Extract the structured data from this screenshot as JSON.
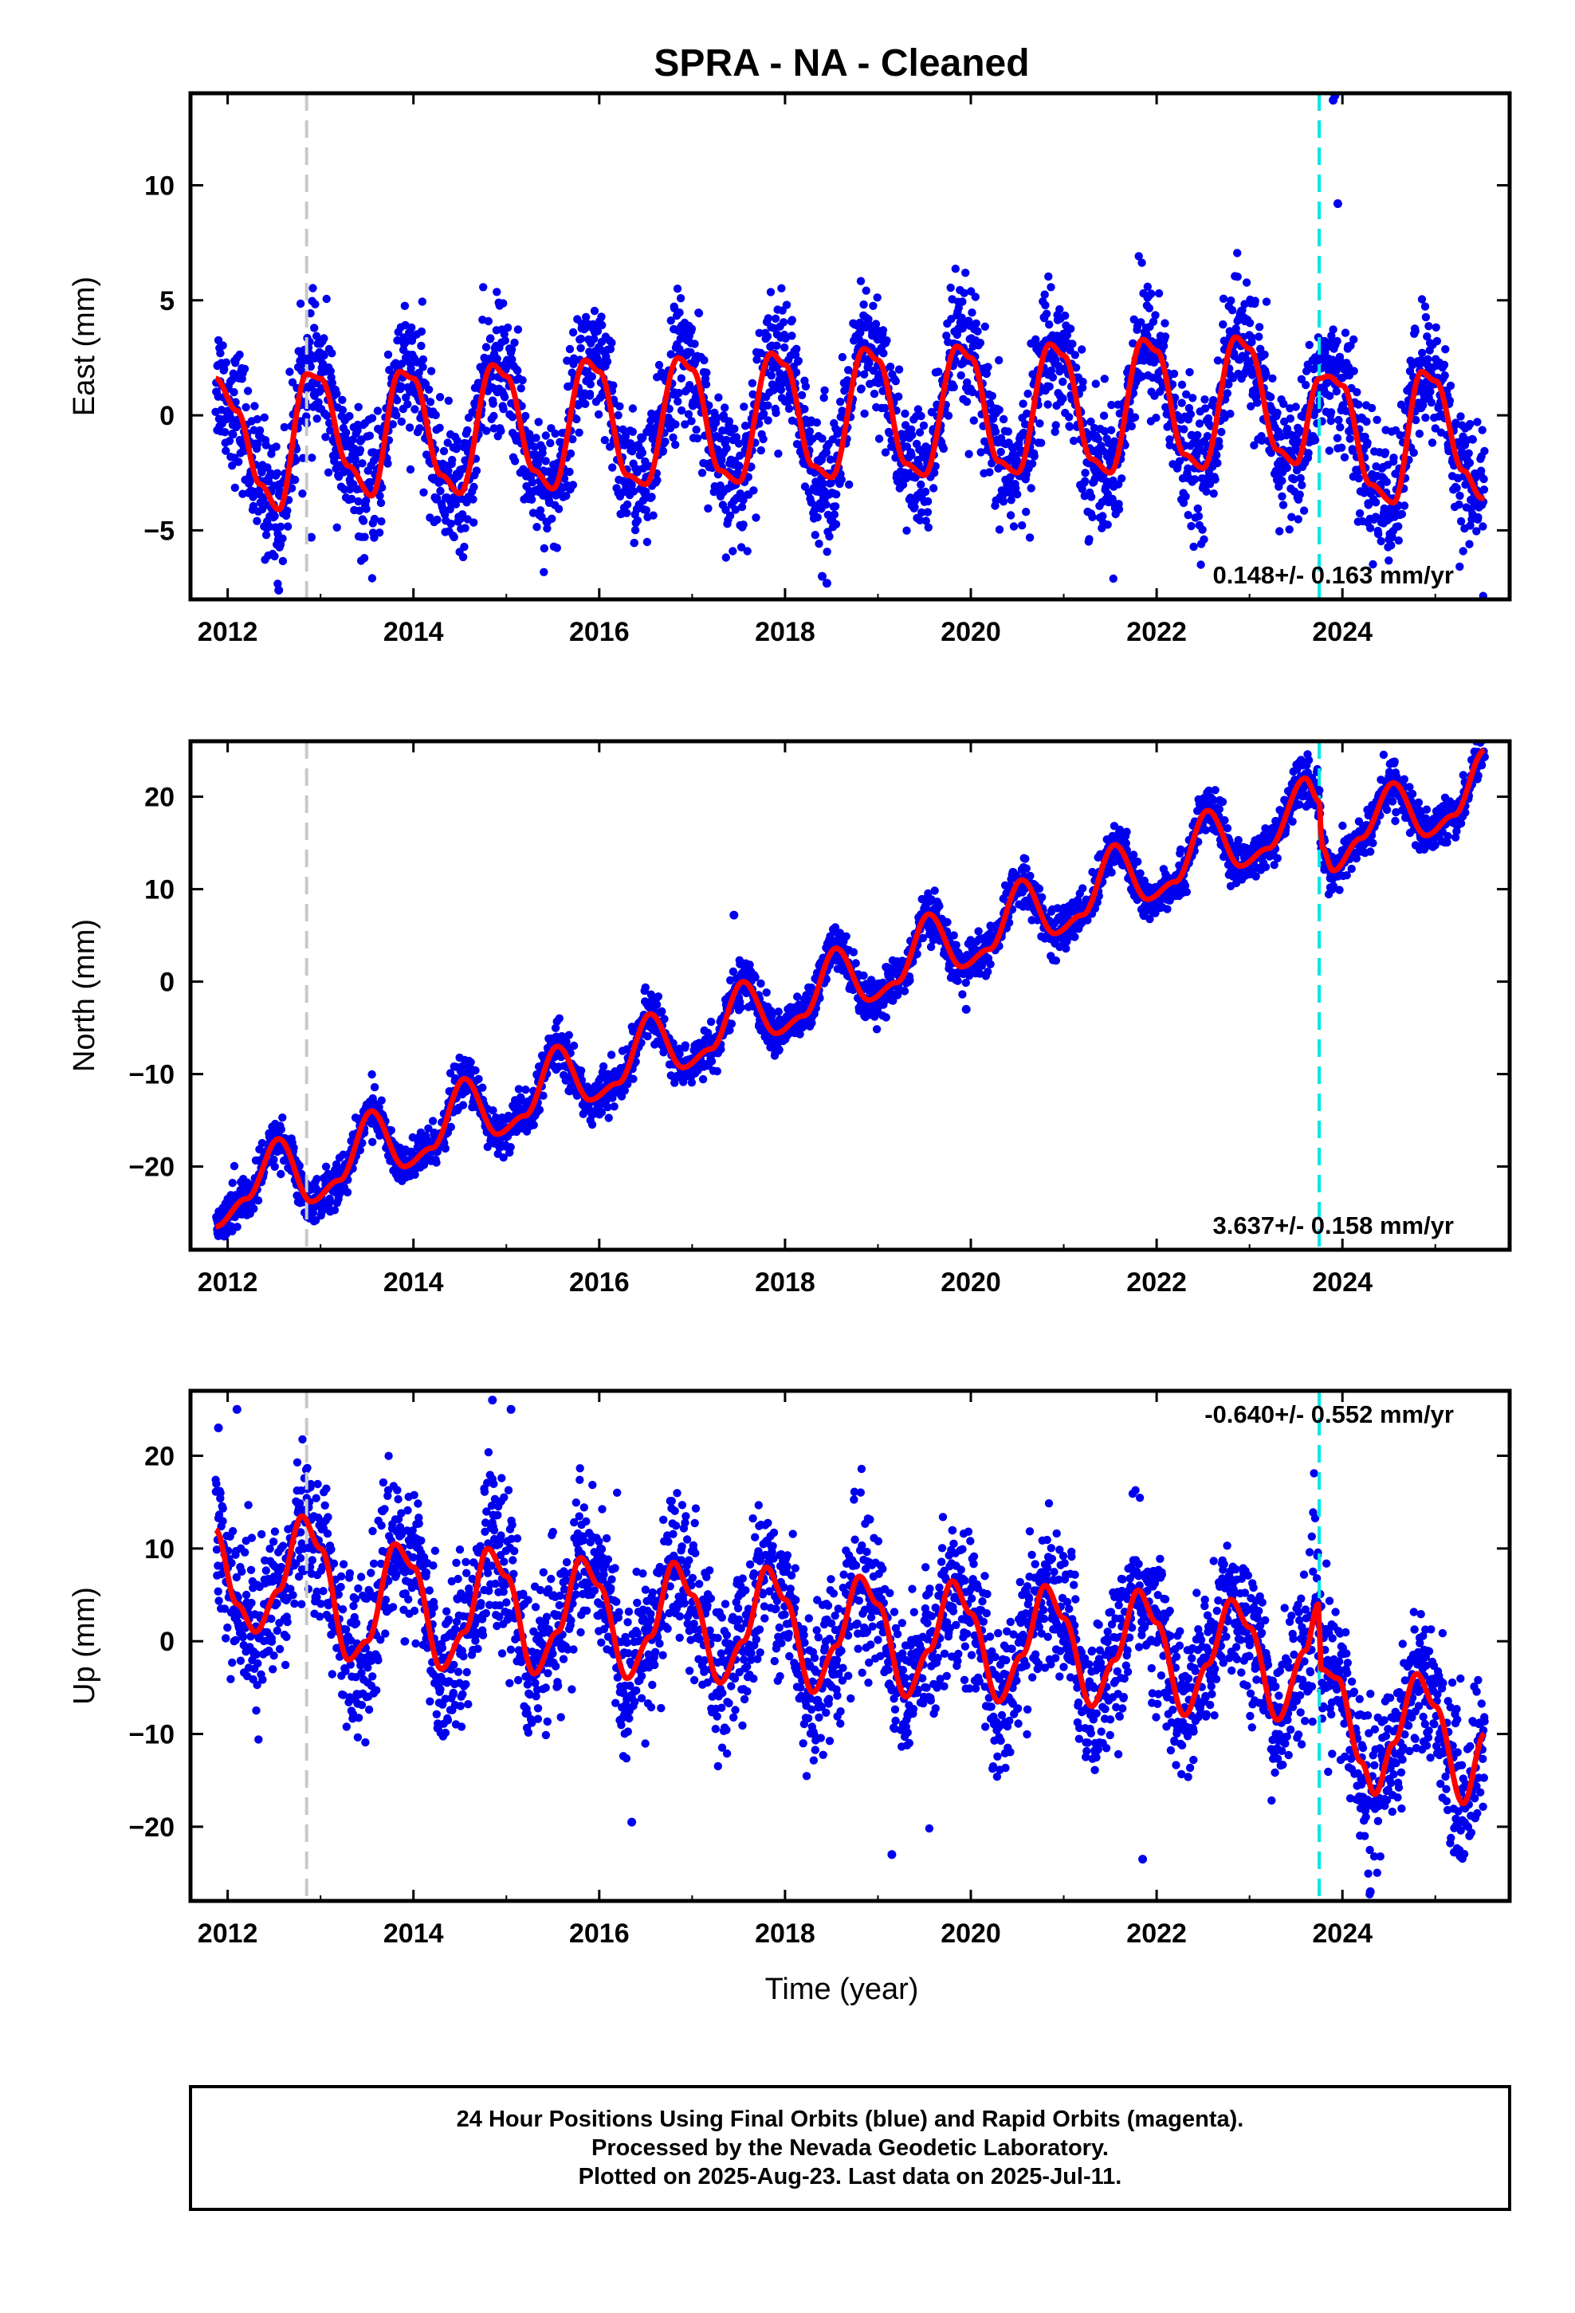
{
  "colors": {
    "points": "#0000ee",
    "model": "#ff0000",
    "antenna_change_line": "#c8c8c8",
    "equipment_change_line": "#00e5e5",
    "frame": "#000000"
  },
  "chart_data": {
    "title": "SPRA  - NA - Cleaned",
    "type": "scatter",
    "xlabel": "Time (year)",
    "xlim": [
      2011.6,
      2025.8
    ],
    "xticks": [
      2012,
      2014,
      2016,
      2018,
      2020,
      2022,
      2024
    ],
    "xtick_labels": [
      "2012",
      "2014",
      "2016",
      "2018",
      "2020",
      "2022",
      "2024"
    ],
    "vertical_markers": [
      {
        "x": 2012.85,
        "style": "dashed",
        "color": "#c8c8c8"
      },
      {
        "x": 2023.75,
        "style": "dashed",
        "color": "#00e5e5"
      }
    ],
    "data_start": 2011.87,
    "data_end": 2025.53,
    "panels": [
      {
        "name": "east",
        "ylabel": "East (mm)",
        "ylim": [
          -8,
          14
        ],
        "yticks": [
          -5,
          0,
          5,
          10
        ],
        "ytick_labels": [
          "−5",
          "0",
          "5",
          "10"
        ],
        "rate_label": "0.148+/- 0.163 mm/yr",
        "model": [
          [
            2011.87,
            1.6
          ],
          [
            2012.1,
            0.2
          ],
          [
            2012.35,
            -3.0
          ],
          [
            2012.55,
            -4.1
          ],
          [
            2012.85,
            1.8
          ],
          [
            2013.0,
            1.6
          ],
          [
            2013.3,
            -2.2
          ],
          [
            2013.55,
            -3.5
          ],
          [
            2013.85,
            1.9
          ],
          [
            2014.0,
            1.6
          ],
          [
            2014.3,
            -2.6
          ],
          [
            2014.5,
            -3.4
          ],
          [
            2014.85,
            2.2
          ],
          [
            2015.0,
            1.7
          ],
          [
            2015.3,
            -2.4
          ],
          [
            2015.5,
            -3.2
          ],
          [
            2015.85,
            2.4
          ],
          [
            2016.0,
            1.9
          ],
          [
            2016.3,
            -2.6
          ],
          [
            2016.5,
            -3.0
          ],
          [
            2016.85,
            2.5
          ],
          [
            2017.0,
            2.0
          ],
          [
            2017.3,
            -2.4
          ],
          [
            2017.5,
            -2.9
          ],
          [
            2017.85,
            2.7
          ],
          [
            2018.0,
            2.2
          ],
          [
            2018.3,
            -2.2
          ],
          [
            2018.5,
            -2.7
          ],
          [
            2018.85,
            2.9
          ],
          [
            2019.0,
            2.4
          ],
          [
            2019.3,
            -2.1
          ],
          [
            2019.5,
            -2.6
          ],
          [
            2019.85,
            3.0
          ],
          [
            2020.0,
            2.5
          ],
          [
            2020.3,
            -2.0
          ],
          [
            2020.5,
            -2.5
          ],
          [
            2020.85,
            3.1
          ],
          [
            2021.0,
            2.6
          ],
          [
            2021.3,
            -1.9
          ],
          [
            2021.5,
            -2.5
          ],
          [
            2021.85,
            3.3
          ],
          [
            2022.0,
            2.8
          ],
          [
            2022.3,
            -1.7
          ],
          [
            2022.5,
            -2.3
          ],
          [
            2022.85,
            3.4
          ],
          [
            2023.0,
            2.9
          ],
          [
            2023.3,
            -1.5
          ],
          [
            2023.5,
            -2.1
          ],
          [
            2023.75,
            1.6
          ],
          [
            2023.85,
            1.7
          ],
          [
            2024.0,
            1.3
          ],
          [
            2024.3,
            -3.0
          ],
          [
            2024.55,
            -3.8
          ],
          [
            2024.85,
            1.9
          ],
          [
            2025.0,
            1.5
          ],
          [
            2025.3,
            -2.4
          ],
          [
            2025.5,
            -3.6
          ]
        ],
        "scatter": {
          "center": "model",
          "spread": 1.4,
          "outliers": [
            [
              2012.55,
              -7.6
            ],
            [
              2012.9,
              -5.3
            ],
            [
              2018.4,
              -7.0
            ],
            [
              2018.45,
              -7.3
            ],
            [
              2023.9,
              13.7
            ],
            [
              2023.92,
              13.9
            ],
            [
              2023.95,
              9.2
            ]
          ]
        }
      },
      {
        "name": "north",
        "ylabel": "North (mm)",
        "ylim": [
          -29,
          26
        ],
        "yticks": [
          -20,
          -10,
          0,
          10,
          20
        ],
        "ytick_labels": [
          "−20",
          "−10",
          "0",
          "10",
          "20"
        ],
        "rate_label": "3.637+/- 0.158 mm/yr",
        "model": [
          [
            2011.87,
            -26.5
          ],
          [
            2012.2,
            -23.5
          ],
          [
            2012.55,
            -17.0
          ],
          [
            2012.9,
            -23.8
          ],
          [
            2013.2,
            -21.5
          ],
          [
            2013.55,
            -14.0
          ],
          [
            2013.9,
            -20.0
          ],
          [
            2014.2,
            -18.0
          ],
          [
            2014.55,
            -10.5
          ],
          [
            2014.9,
            -16.5
          ],
          [
            2015.2,
            -14.5
          ],
          [
            2015.55,
            -7.0
          ],
          [
            2015.9,
            -12.8
          ],
          [
            2016.2,
            -11.0
          ],
          [
            2016.55,
            -3.5
          ],
          [
            2016.9,
            -9.3
          ],
          [
            2017.2,
            -7.3
          ],
          [
            2017.55,
            0.0
          ],
          [
            2017.9,
            -5.6
          ],
          [
            2018.2,
            -3.7
          ],
          [
            2018.55,
            3.6
          ],
          [
            2018.9,
            -2.0
          ],
          [
            2019.2,
            -0.1
          ],
          [
            2019.55,
            7.3
          ],
          [
            2019.9,
            1.6
          ],
          [
            2020.2,
            3.5
          ],
          [
            2020.55,
            11.0
          ],
          [
            2020.9,
            5.2
          ],
          [
            2021.2,
            7.2
          ],
          [
            2021.55,
            14.8
          ],
          [
            2021.9,
            8.9
          ],
          [
            2022.2,
            10.8
          ],
          [
            2022.55,
            18.5
          ],
          [
            2022.9,
            12.5
          ],
          [
            2023.2,
            14.4
          ],
          [
            2023.6,
            22.0
          ],
          [
            2023.75,
            19.5
          ],
          [
            2023.78,
            14.5
          ],
          [
            2023.9,
            12.0
          ],
          [
            2024.2,
            15.5
          ],
          [
            2024.55,
            21.5
          ],
          [
            2024.9,
            15.8
          ],
          [
            2025.2,
            18.0
          ],
          [
            2025.53,
            25.0
          ]
        ],
        "scatter": {
          "center": "model",
          "spread": 1.2,
          "outliers": [
            [
              2017.45,
              7.2
            ],
            [
              2019.95,
              -3.0
            ]
          ]
        }
      },
      {
        "name": "up",
        "ylabel": "Up (mm)",
        "ylim": [
          -28,
          27
        ],
        "yticks": [
          -20,
          -10,
          0,
          10,
          20
        ],
        "ytick_labels": [
          "−20",
          "−10",
          "0",
          "10",
          "20"
        ],
        "rate_label": "-0.640+/- 0.552 mm/yr",
        "model": [
          [
            2011.87,
            12.0
          ],
          [
            2012.1,
            4.0
          ],
          [
            2012.3,
            1.0
          ],
          [
            2012.55,
            5.5
          ],
          [
            2012.8,
            13.5
          ],
          [
            2013.0,
            10.0
          ],
          [
            2013.3,
            -2.0
          ],
          [
            2013.5,
            0.0
          ],
          [
            2013.8,
            10.5
          ],
          [
            2014.0,
            8.0
          ],
          [
            2014.3,
            -3.0
          ],
          [
            2014.55,
            1.0
          ],
          [
            2014.8,
            10.0
          ],
          [
            2015.0,
            7.0
          ],
          [
            2015.3,
            -3.5
          ],
          [
            2015.55,
            1.0
          ],
          [
            2015.8,
            9.0
          ],
          [
            2016.0,
            6.0
          ],
          [
            2016.3,
            -4.0
          ],
          [
            2016.55,
            0.5
          ],
          [
            2016.8,
            8.5
          ],
          [
            2017.0,
            5.0
          ],
          [
            2017.3,
            -4.5
          ],
          [
            2017.55,
            0.0
          ],
          [
            2017.8,
            8.0
          ],
          [
            2018.0,
            4.5
          ],
          [
            2018.3,
            -5.5
          ],
          [
            2018.55,
            -0.5
          ],
          [
            2018.8,
            7.0
          ],
          [
            2019.0,
            4.0
          ],
          [
            2019.3,
            -6.0
          ],
          [
            2019.55,
            -1.0
          ],
          [
            2019.8,
            6.5
          ],
          [
            2020.0,
            3.0
          ],
          [
            2020.3,
            -6.5
          ],
          [
            2020.55,
            -1.5
          ],
          [
            2020.8,
            6.0
          ],
          [
            2021.0,
            2.5
          ],
          [
            2021.3,
            -7.0
          ],
          [
            2021.55,
            -2.0
          ],
          [
            2021.8,
            5.5
          ],
          [
            2022.0,
            2.0
          ],
          [
            2022.3,
            -8.0
          ],
          [
            2022.55,
            -2.5
          ],
          [
            2022.8,
            4.5
          ],
          [
            2023.0,
            1.5
          ],
          [
            2023.3,
            -8.5
          ],
          [
            2023.6,
            -1.0
          ],
          [
            2023.74,
            4.0
          ],
          [
            2023.77,
            -3.0
          ],
          [
            2023.95,
            -4.0
          ],
          [
            2024.2,
            -13.0
          ],
          [
            2024.35,
            -16.5
          ],
          [
            2024.55,
            -11.0
          ],
          [
            2024.8,
            -3.5
          ],
          [
            2025.0,
            -7.0
          ],
          [
            2025.3,
            -17.5
          ],
          [
            2025.53,
            -10.0
          ]
        ],
        "scatter": {
          "center": "model",
          "spread": 4.0,
          "outliers": [
            [
              2011.9,
              23.0
            ],
            [
              2012.1,
              25.0
            ],
            [
              2014.85,
              26.0
            ],
            [
              2015.05,
              25.0
            ],
            [
              2016.35,
              -19.5
            ],
            [
              2019.15,
              -23.0
            ],
            [
              2021.85,
              -23.5
            ],
            [
              2024.3,
              -27.0
            ]
          ]
        }
      }
    ]
  },
  "footer": {
    "line1": "24 Hour Positions Using Final Orbits (blue) and Rapid Orbits (magenta).",
    "line2": "Processed by the Nevada Geodetic Laboratory.",
    "line3": "Plotted on 2025-Aug-23. Last data on 2025-Jul-11."
  }
}
